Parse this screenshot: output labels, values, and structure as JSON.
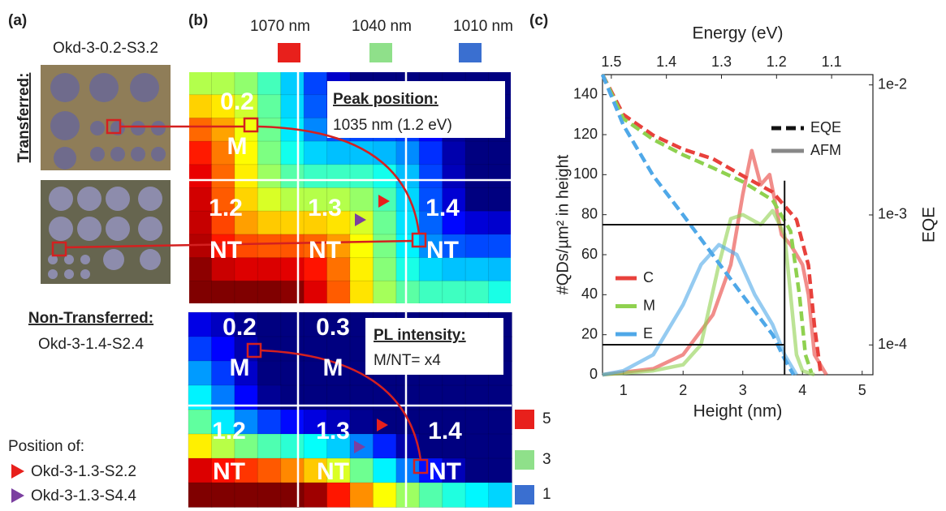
{
  "panel_a": {
    "label": "(a)",
    "top_sample": "Okd-3-0.2-S3.2",
    "top_group": "Transferred:",
    "bottom_group": "Non-Transferred:",
    "bottom_sample": "Okd-3-1.4-S2.4",
    "position_title": "Position of:",
    "markers": [
      {
        "name": "Okd-3-1.3-S2.2",
        "color": "#e8201c"
      },
      {
        "name": "Okd-3-1.3-S4.4",
        "color": "#7b3fa0"
      }
    ]
  },
  "panel_b": {
    "label": "(b)",
    "legend": [
      {
        "name": "1070 nm",
        "color": "#e8201c"
      },
      {
        "name": "1040 nm",
        "color": "#8fe08a"
      },
      {
        "name": "1010 nm",
        "color": "#3a6fd0"
      }
    ],
    "top_map": {
      "title": "Peak position:",
      "text": "1035 nm (1.2 eV)",
      "cells": [
        {
          "value": 0.2,
          "type": "M"
        },
        {
          "value": 1.2,
          "type": "NT"
        },
        {
          "value": 1.3,
          "type": "NT"
        },
        {
          "value": 1.4,
          "type": "NT"
        }
      ]
    },
    "bottom_map": {
      "title": "PL intensity:",
      "text": "M/NT= x4",
      "cells": [
        {
          "value": 0.2,
          "type": "M"
        },
        {
          "value": 0.3,
          "type": "M"
        },
        {
          "value": 1.2,
          "type": "NT"
        },
        {
          "value": 1.3,
          "type": "NT"
        },
        {
          "value": 1.4,
          "type": "NT"
        }
      ]
    },
    "scale": [
      {
        "value": 5,
        "color": "#e8201c"
      },
      {
        "value": 3,
        "color": "#8fe08a"
      },
      {
        "value": 1,
        "color": "#3a6fd0"
      }
    ]
  },
  "chart_data": {
    "type": "line",
    "label": "(c)",
    "x_label": "Height (nm)",
    "y_label": "#QDs/µm² in height",
    "x2_label": "Energy (eV)",
    "y2_label": "EQE",
    "xlim": [
      0.65,
      5.18
    ],
    "xticks": [
      1,
      2,
      3,
      4,
      5
    ],
    "ylim": [
      0,
      150
    ],
    "yticks": [
      0,
      20,
      40,
      60,
      80,
      100,
      120,
      140
    ],
    "x2lim": [
      1.516,
      1.025
    ],
    "x2ticks": [
      1.5,
      1.4,
      1.3,
      1.2,
      1.1
    ],
    "y2lim": [
      5.9e-05,
      0.012
    ],
    "y2log": true,
    "y2ticks": [
      {
        "value": 0.01,
        "label": "1e-2"
      },
      {
        "value": 0.001,
        "label": "1e-3"
      },
      {
        "value": 0.0001,
        "label": "1e-4"
      }
    ],
    "series": [
      {
        "name": "C",
        "color": "#e8413c",
        "x": [
          0.65,
          1.5,
          2,
          2.5,
          2.8,
          3.0,
          3.15,
          3.3,
          3.45,
          3.55,
          3.65,
          3.8,
          4.0,
          4.1,
          4.2,
          4.4
        ],
        "values": [
          0,
          3,
          10,
          30,
          55,
          90,
          112,
          95,
          100,
          85,
          70,
          65,
          55,
          40,
          10,
          0
        ]
      },
      {
        "name": "M",
        "color": "#8fd14f",
        "x": [
          0.65,
          1.5,
          2,
          2.3,
          2.6,
          2.8,
          3.0,
          3.3,
          3.5,
          3.7,
          3.8,
          3.9,
          4.0,
          4.2
        ],
        "values": [
          0,
          2,
          5,
          15,
          55,
          78,
          80,
          75,
          82,
          70,
          40,
          10,
          2,
          0
        ]
      },
      {
        "name": "E",
        "color": "#4fa8e8",
        "x": [
          0.65,
          1,
          1.5,
          2,
          2.3,
          2.6,
          2.9,
          3.2,
          3.5,
          3.7,
          3.9
        ],
        "values": [
          0,
          2,
          10,
          35,
          55,
          65,
          60,
          40,
          25,
          10,
          0
        ]
      }
    ],
    "eqe_series": [
      {
        "color": "#e8413c",
        "axis": "y2",
        "x": [
          0.65,
          1,
          1.5,
          2,
          2.5,
          3,
          3.5,
          3.9,
          4.1,
          4.2,
          4.3
        ],
        "values": [
          0.012,
          0.0059,
          0.0041,
          0.0032,
          0.0027,
          0.002,
          0.0015,
          0.00092,
          0.00041,
          0.00014,
          6.3e-05
        ]
      },
      {
        "color": "#8fd14f",
        "axis": "y2",
        "x": [
          0.65,
          1,
          1.5,
          2,
          2.5,
          3,
          3.5,
          3.8,
          3.95,
          4.05,
          4.15
        ],
        "values": [
          0.012,
          0.0055,
          0.0038,
          0.0029,
          0.0023,
          0.0018,
          0.0013,
          0.00075,
          0.00024,
          8.4e-05,
          6.1e-05
        ]
      },
      {
        "color": "#4fa8e8",
        "axis": "y2",
        "x": [
          0.65,
          1,
          1.5,
          2,
          2.5,
          3,
          3.5,
          3.7,
          3.85
        ],
        "values": [
          0.012,
          0.0049,
          0.002,
          0.001,
          0.00049,
          0.00024,
          0.00012,
          7.8e-05,
          5.9e-05
        ]
      }
    ],
    "line_styles": [
      {
        "name": "EQE",
        "dashed": true,
        "color": "#111111"
      },
      {
        "name": "AFM",
        "dashed": false,
        "color": "#888888"
      }
    ],
    "guides": [
      {
        "x": [
          0.65,
          3.7
        ],
        "y": [
          75,
          75
        ]
      },
      {
        "x": [
          0.65,
          3.7
        ],
        "y": [
          15,
          15
        ]
      },
      {
        "x": [
          3.7,
          3.7
        ],
        "y": [
          0,
          97
        ]
      }
    ]
  }
}
